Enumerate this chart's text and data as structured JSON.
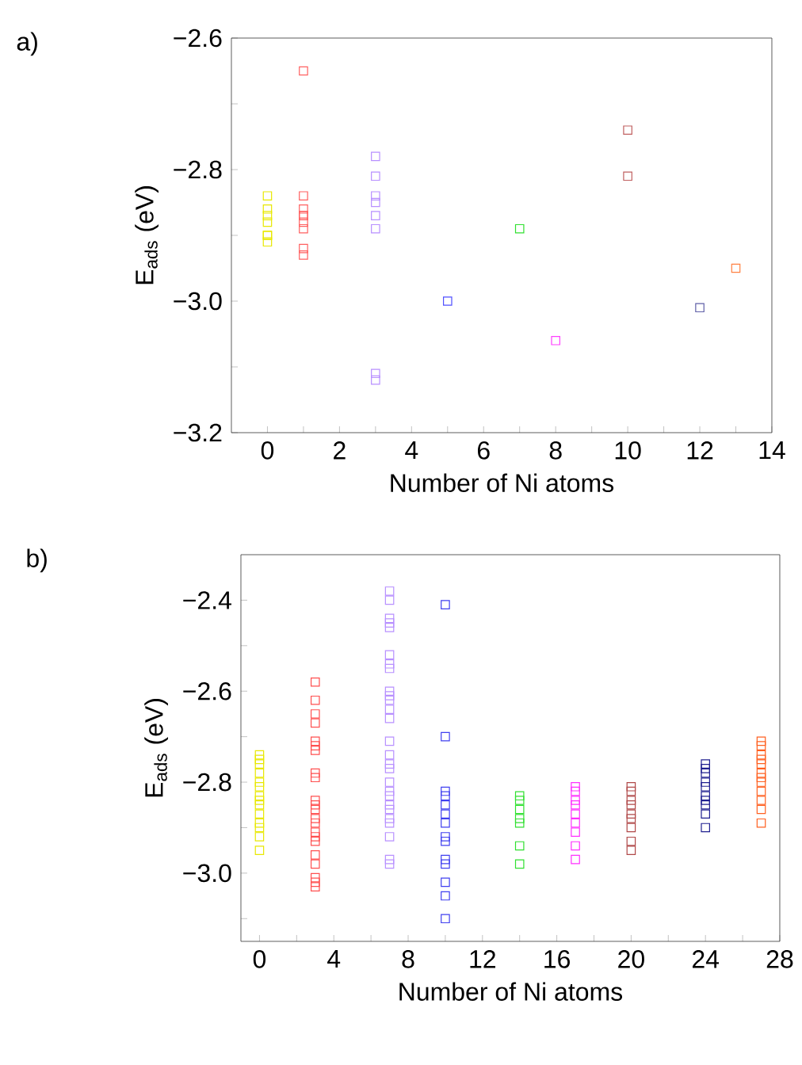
{
  "chart_data": [
    {
      "type": "scatter",
      "xlabel": "Number of Ni atoms",
      "ylabel": "E$_{ads}$ (eV)",
      "annotations": [
        "a)"
      ],
      "marker": "square",
      "xlim": [
        -1,
        14
      ],
      "ylim": [
        -3.2,
        -2.6
      ],
      "xticks": [
        0,
        {
          "value": 1,
          "label": null
        },
        2,
        {
          "value": 3,
          "label": null
        },
        4,
        {
          "value": 5,
          "label": null
        },
        6,
        {
          "value": 7,
          "label": null
        },
        8,
        {
          "value": 9,
          "label": null
        },
        10,
        {
          "value": 11,
          "label": null
        },
        12,
        {
          "value": 13,
          "label": null
        },
        14
      ],
      "yticks": [
        {
          "value": -3.2,
          "label": "−3.2"
        },
        {
          "value": -3.1,
          "label": null
        },
        {
          "value": -3.0,
          "label": "−3.0"
        },
        {
          "value": -2.9,
          "label": null
        },
        {
          "value": -2.8,
          "label": "−2.8"
        },
        {
          "value": -2.7,
          "label": null
        },
        {
          "value": -2.6,
          "label": "−2.6"
        }
      ],
      "series": [
        {
          "color": "#e8e800",
          "x": [
            0,
            0,
            0,
            0,
            0,
            0,
            0
          ],
          "values": [
            -2.84,
            -2.86,
            -2.87,
            -2.88,
            -2.9,
            -2.9,
            -2.91
          ]
        },
        {
          "color": "#ff6060",
          "x": [
            1,
            1,
            1,
            1,
            1,
            1,
            1,
            1,
            1
          ],
          "values": [
            -2.65,
            -2.84,
            -2.86,
            -2.87,
            -2.87,
            -2.88,
            -2.89,
            -2.92,
            -2.93
          ]
        },
        {
          "color": "#b890ff",
          "x": [
            3,
            3,
            3,
            3,
            3,
            3,
            3,
            3
          ],
          "values": [
            -2.78,
            -2.81,
            -2.84,
            -2.85,
            -2.87,
            -2.89,
            -3.11,
            -3.12
          ]
        },
        {
          "color": "#5050ff",
          "x": [
            5
          ],
          "values": [
            -3.0
          ]
        },
        {
          "color": "#30e030",
          "x": [
            7
          ],
          "values": [
            -2.89
          ]
        },
        {
          "color": "#ff40ff",
          "x": [
            8
          ],
          "values": [
            -3.06
          ]
        },
        {
          "color": "#c06060",
          "x": [
            10,
            10
          ],
          "values": [
            -2.74,
            -2.81
          ]
        },
        {
          "color": "#6060a8",
          "x": [
            12
          ],
          "values": [
            -3.01
          ]
        },
        {
          "color": "#ff8040",
          "x": [
            13
          ],
          "values": [
            -2.95
          ]
        }
      ]
    },
    {
      "type": "scatter",
      "xlabel": "Number of Ni atoms",
      "ylabel": "E$_{ads}$ (eV)",
      "annotations": [
        "b)"
      ],
      "marker": "square",
      "xlim": [
        -1,
        28
      ],
      "ylim": [
        -3.15,
        -2.3
      ],
      "xticks": [
        0,
        {
          "value": 2,
          "label": null
        },
        4,
        {
          "value": 6,
          "label": null
        },
        8,
        {
          "value": 10,
          "label": null
        },
        12,
        {
          "value": 14,
          "label": null
        },
        16,
        {
          "value": 18,
          "label": null
        },
        20,
        {
          "value": 22,
          "label": null
        },
        24,
        {
          "value": 26,
          "label": null
        },
        28
      ],
      "yticks": [
        {
          "value": -3.1,
          "label": null
        },
        {
          "value": -3.0,
          "label": "−3.0"
        },
        {
          "value": -2.9,
          "label": null
        },
        {
          "value": -2.8,
          "label": "−2.8"
        },
        {
          "value": -2.7,
          "label": null
        },
        {
          "value": -2.6,
          "label": "−2.6"
        },
        {
          "value": -2.5,
          "label": null
        },
        {
          "value": -2.4,
          "label": "−2.4"
        }
      ],
      "series": [
        {
          "color": "#e8e800",
          "x": [
            0,
            0,
            0,
            0,
            0,
            0,
            0,
            0,
            0,
            0,
            0,
            0,
            0,
            0
          ],
          "values": [
            -2.74,
            -2.75,
            -2.76,
            -2.78,
            -2.8,
            -2.81,
            -2.83,
            -2.84,
            -2.85,
            -2.87,
            -2.89,
            -2.9,
            -2.92,
            -2.95
          ]
        },
        {
          "color": "#ff5050",
          "x": [
            3,
            3,
            3,
            3,
            3,
            3,
            3,
            3,
            3,
            3,
            3,
            3,
            3,
            3,
            3,
            3,
            3,
            3,
            3,
            3,
            3,
            3
          ],
          "values": [
            -2.58,
            -2.62,
            -2.65,
            -2.67,
            -2.71,
            -2.72,
            -2.73,
            -2.78,
            -2.79,
            -2.84,
            -2.85,
            -2.86,
            -2.88,
            -2.89,
            -2.91,
            -2.92,
            -2.93,
            -2.96,
            -2.98,
            -3.01,
            -3.02,
            -3.03
          ]
        },
        {
          "color": "#b890ff",
          "x": [
            7,
            7,
            7,
            7,
            7,
            7,
            7,
            7,
            7,
            7,
            7,
            7,
            7,
            7,
            7,
            7,
            7,
            7,
            7,
            7,
            7,
            7,
            7,
            7,
            7,
            7,
            7
          ],
          "values": [
            -2.38,
            -2.4,
            -2.44,
            -2.45,
            -2.46,
            -2.52,
            -2.54,
            -2.55,
            -2.6,
            -2.61,
            -2.62,
            -2.64,
            -2.66,
            -2.71,
            -2.74,
            -2.76,
            -2.77,
            -2.8,
            -2.82,
            -2.83,
            -2.85,
            -2.86,
            -2.88,
            -2.89,
            -2.92,
            -2.97,
            -2.98
          ]
        },
        {
          "color": "#4040f0",
          "x": [
            10,
            10,
            10,
            10,
            10,
            10,
            10,
            10,
            10,
            10,
            10,
            10,
            10,
            10
          ],
          "values": [
            -2.41,
            -2.7,
            -2.82,
            -2.83,
            -2.85,
            -2.87,
            -2.89,
            -2.92,
            -2.93,
            -2.97,
            -2.98,
            -3.02,
            -3.05,
            -3.1
          ]
        },
        {
          "color": "#30e030",
          "x": [
            14,
            14,
            14,
            14,
            14,
            14,
            14
          ],
          "values": [
            -2.83,
            -2.84,
            -2.86,
            -2.88,
            -2.89,
            -2.94,
            -2.98
          ]
        },
        {
          "color": "#ff30ff",
          "x": [
            17,
            17,
            17,
            17,
            17,
            17,
            17,
            17,
            17
          ],
          "values": [
            -2.81,
            -2.82,
            -2.84,
            -2.85,
            -2.87,
            -2.89,
            -2.91,
            -2.94,
            -2.97
          ]
        },
        {
          "color": "#b04848",
          "x": [
            20,
            20,
            20,
            20,
            20,
            20,
            20,
            20,
            20
          ],
          "values": [
            -2.81,
            -2.82,
            -2.84,
            -2.85,
            -2.87,
            -2.88,
            -2.9,
            -2.93,
            -2.95
          ]
        },
        {
          "color": "#202090",
          "x": [
            24,
            24,
            24,
            24,
            24,
            24,
            24,
            24,
            24,
            24
          ],
          "values": [
            -2.76,
            -2.77,
            -2.78,
            -2.8,
            -2.81,
            -2.83,
            -2.84,
            -2.85,
            -2.87,
            -2.9
          ]
        },
        {
          "color": "#ff6020",
          "x": [
            27,
            27,
            27,
            27,
            27,
            27,
            27,
            27,
            27,
            27,
            27,
            27
          ],
          "values": [
            -2.71,
            -2.72,
            -2.74,
            -2.75,
            -2.76,
            -2.78,
            -2.79,
            -2.8,
            -2.82,
            -2.84,
            -2.86,
            -2.89
          ]
        }
      ]
    }
  ]
}
